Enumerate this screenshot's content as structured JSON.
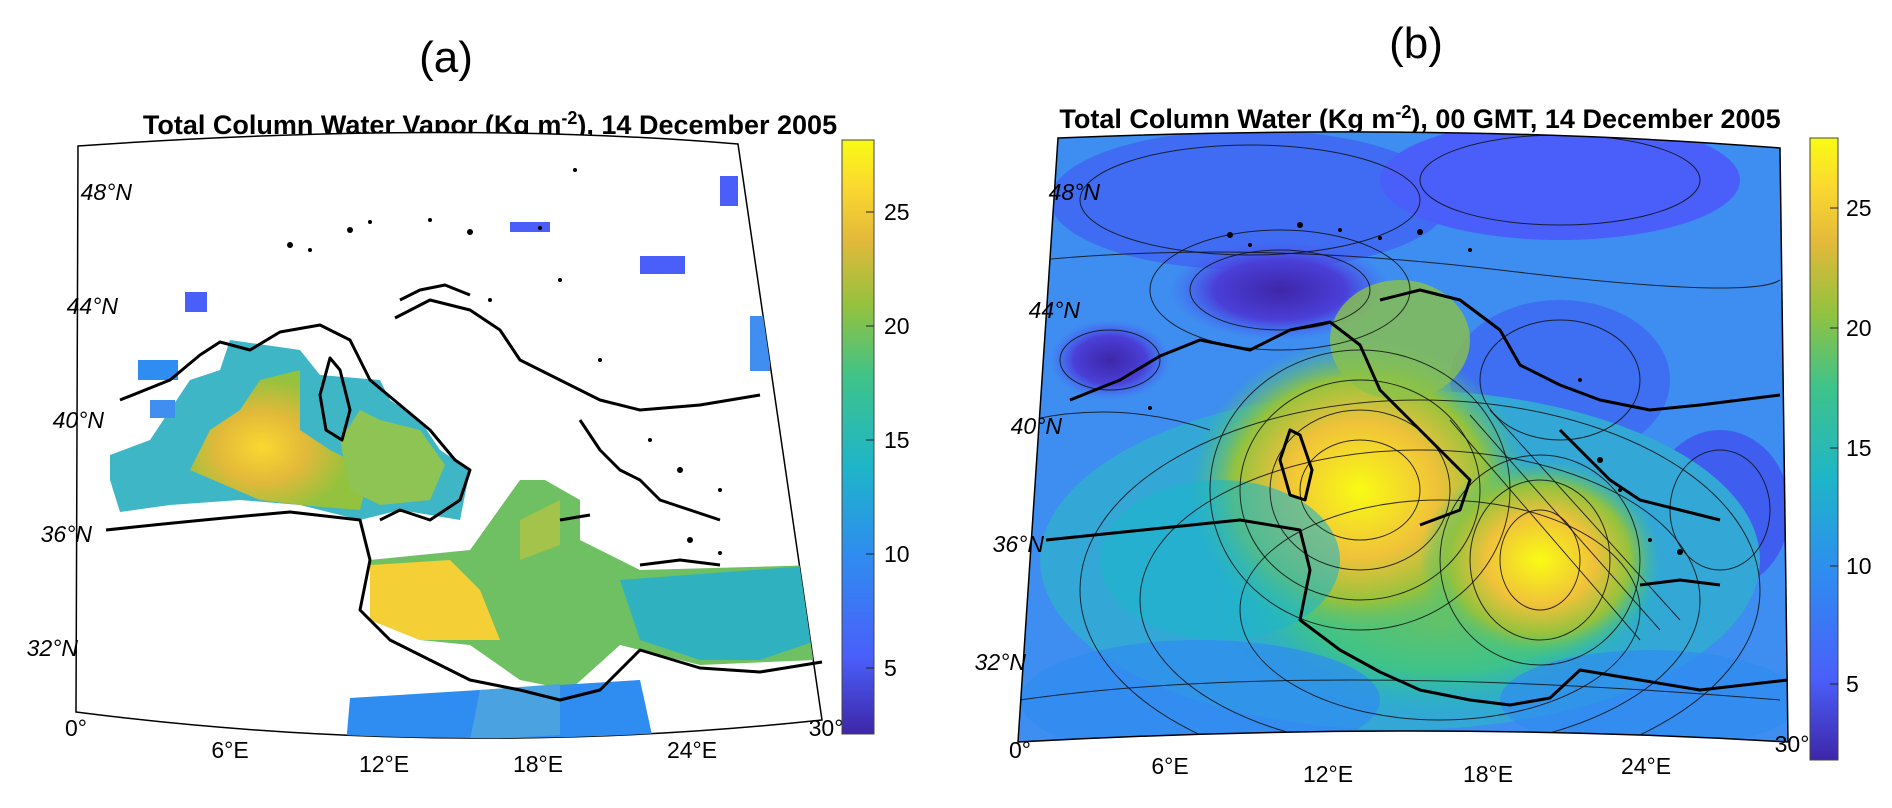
{
  "panel_a": {
    "label": "(a)",
    "title": "Total Column Water Vapor (Kg m",
    "title_sup": "-2",
    "title_end": "), 14 December 2005",
    "lat_labels": [
      "48°N",
      "44°N",
      "40°N",
      "36°N",
      "32°N"
    ],
    "lon_labels": [
      "0°",
      "6°E",
      "12°E",
      "18°E",
      "24°E",
      "30°"
    ],
    "colorbar_ticks": [
      "25",
      "20",
      "15",
      "10",
      "5"
    ]
  },
  "panel_b": {
    "label": "(b)",
    "title": "Total Column Water (Kg m",
    "title_sup": "-2",
    "title_end": "), 00 GMT, 14 December 2005",
    "lat_labels": [
      "48°N",
      "44°N",
      "40°N",
      "36°N",
      "32°N"
    ],
    "lon_labels": [
      "0°",
      "6°E",
      "12°E",
      "18°E",
      "24°E",
      "30°"
    ],
    "colorbar_ticks": [
      "25",
      "20",
      "15",
      "10",
      "5"
    ]
  },
  "colorbar": {
    "min": 2,
    "max": 28,
    "colors": [
      "#3e26a8",
      "#4a5ffa",
      "#2f8cf0",
      "#1eb5c9",
      "#3ec38a",
      "#93c23e",
      "#e2b93a",
      "#fbd830",
      "#f9fb14"
    ]
  }
}
